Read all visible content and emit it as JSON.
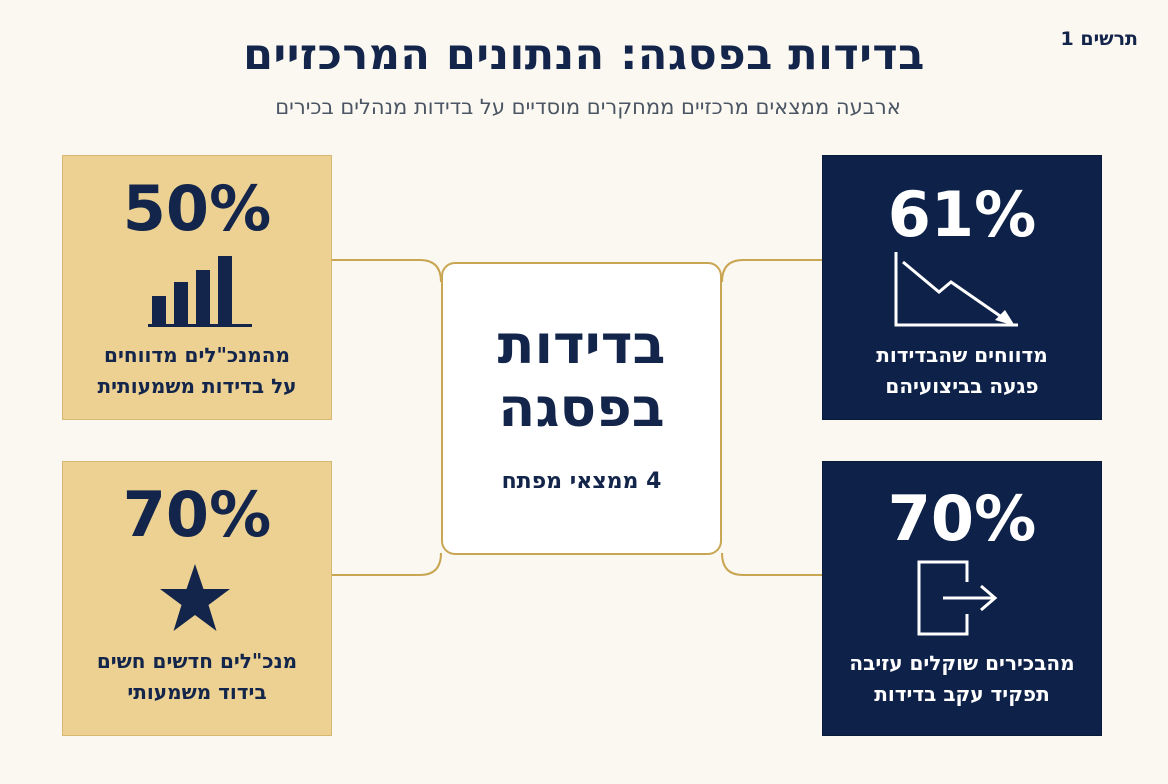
{
  "header": {
    "figure_label": "תרשים 1",
    "title": "בדידות בפסגה: הנתונים המרכזיים",
    "subtitle": "ארבעה ממצאים מרכזיים ממחקרים מוסדיים על בדידות מנהלים בכירים"
  },
  "center": {
    "title_line1": "בדידות",
    "title_line2": "בפסגה",
    "subtitle": "4 ממצאי מפתח"
  },
  "cards": {
    "top_left": {
      "percent": "50%",
      "value": 50,
      "line1": "מהמנכ\"לים מדווחים",
      "line2": "על בדידות משמעותית",
      "icon": "bar-chart-icon"
    },
    "bottom_left": {
      "percent": "70%",
      "value": 70,
      "line1": "מנכ\"לים חדשים חשים",
      "line2": "בידוד משמעותי",
      "icon": "star-icon"
    },
    "top_right": {
      "percent": "61%",
      "value": 61,
      "line1": "מדווחים שהבדידות",
      "line2": "פגעה בביצועיהם",
      "icon": "declining-trend-icon"
    },
    "bottom_right": {
      "percent": "70%",
      "value": 70,
      "line1": "מהבכירים שוקלים עזיבה",
      "line2": "תפקיד עקב בדידות",
      "icon": "exit-door-icon"
    }
  },
  "colors": {
    "navy": "#0e2249",
    "gold": "#ecd193",
    "connector": "#c9a653",
    "background": "#fbf8f1"
  }
}
